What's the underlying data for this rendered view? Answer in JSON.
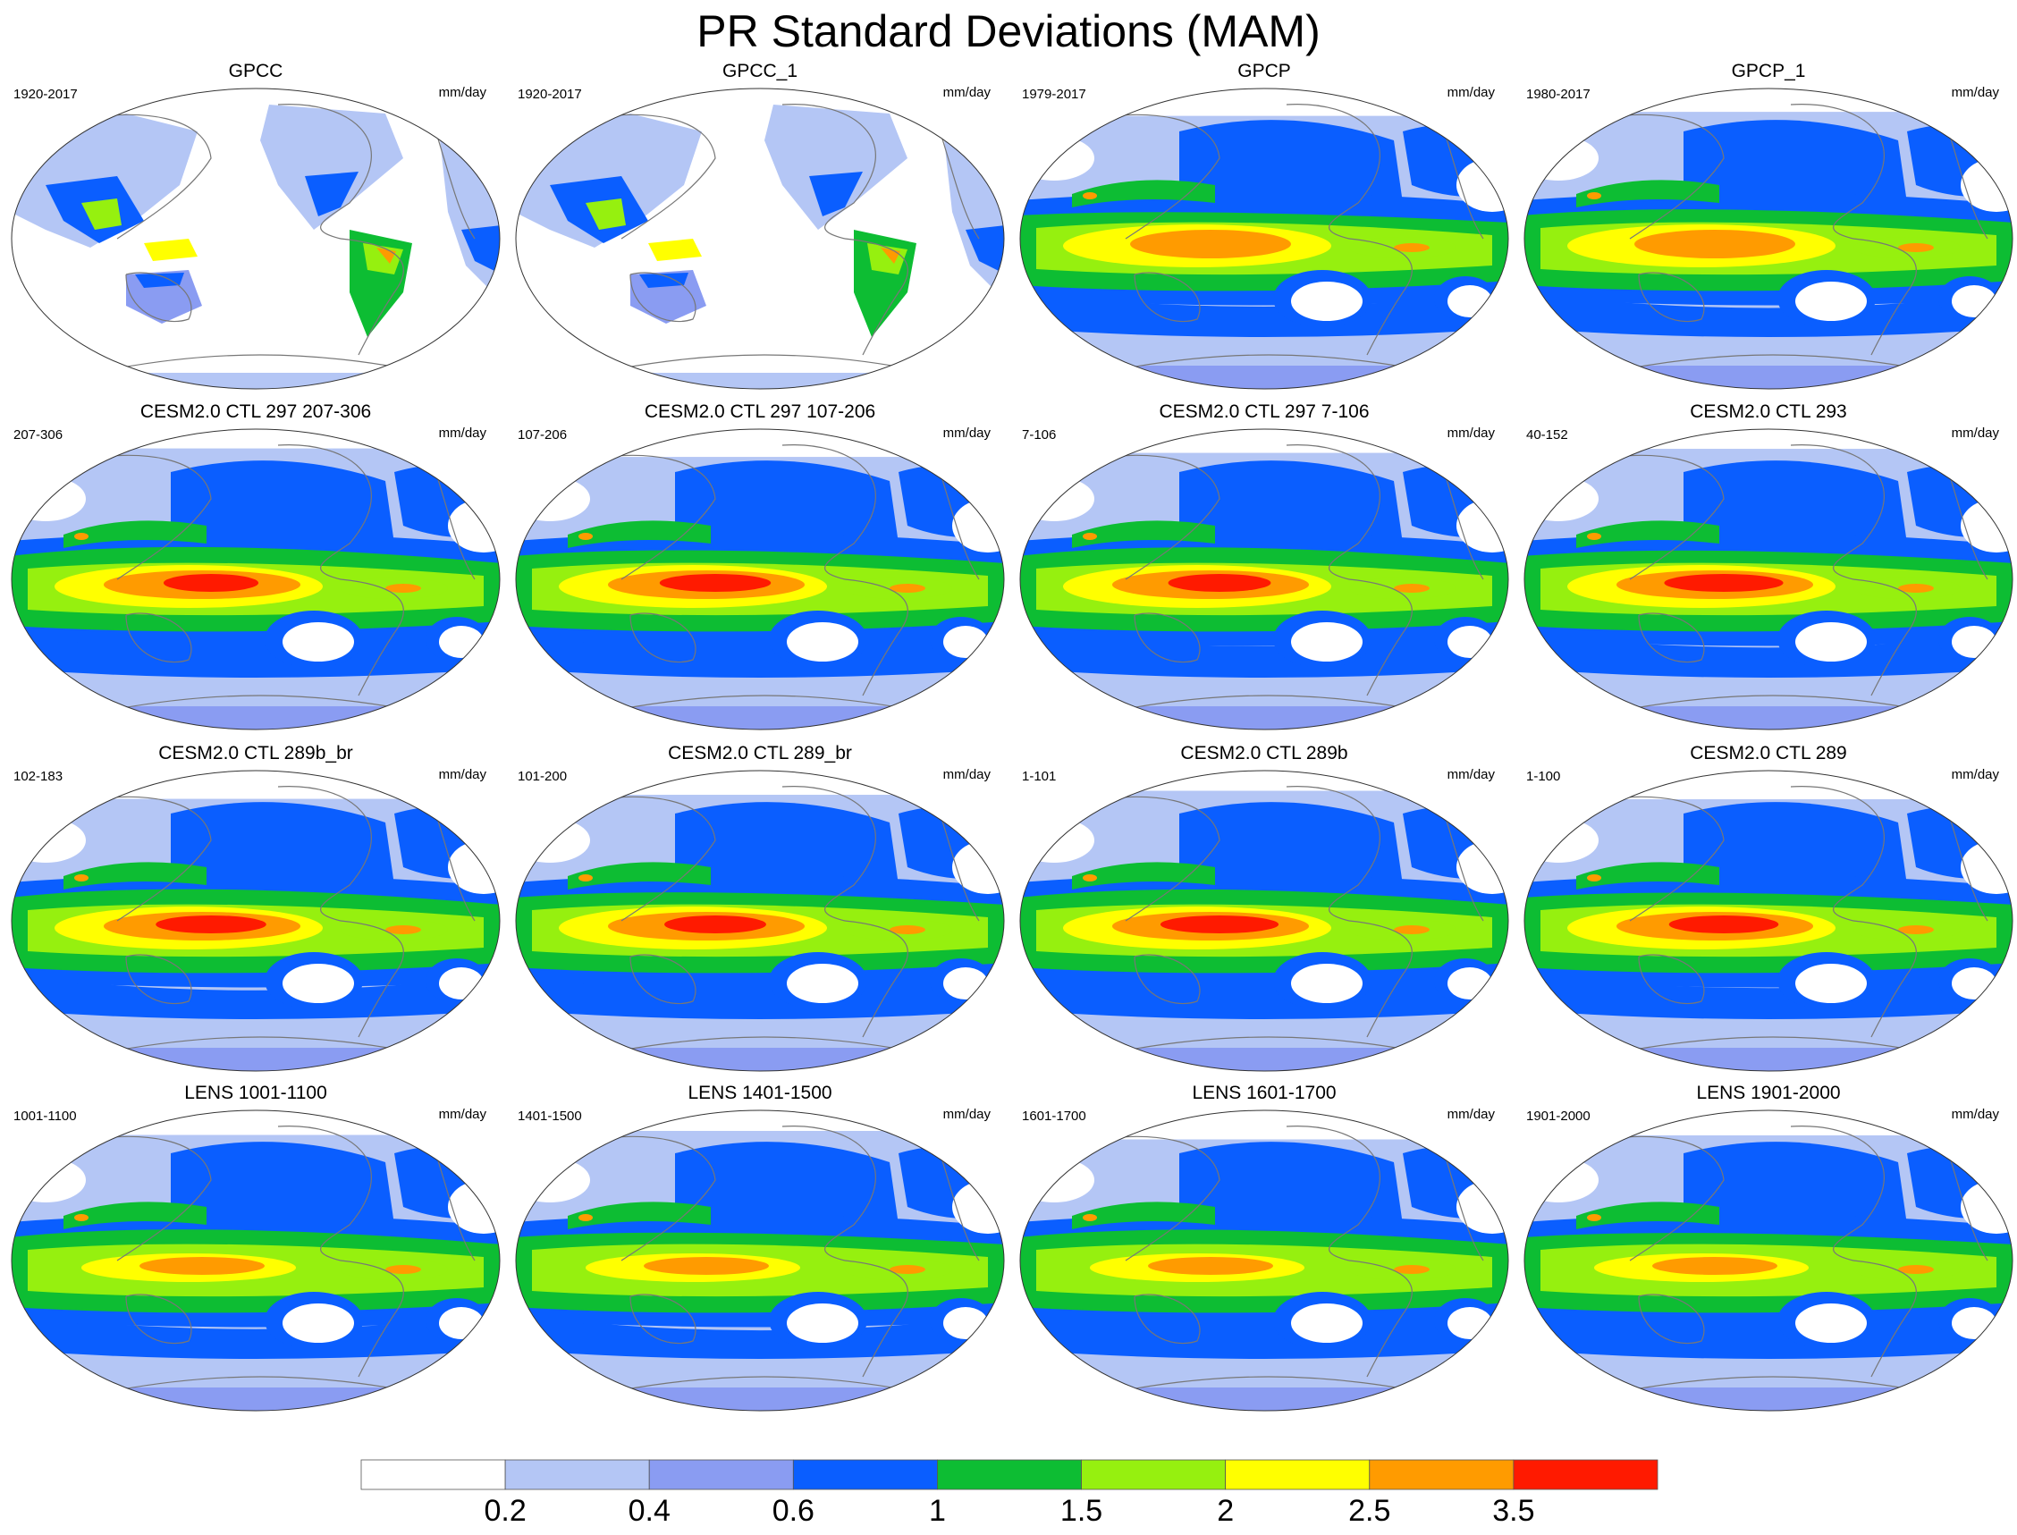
{
  "title": "PR Standard Deviations (MAM)",
  "units": "mm/day",
  "panels": [
    {
      "title": "GPCC",
      "years": "1920-2017",
      "kind": "land"
    },
    {
      "title": "GPCC_1",
      "years": "1920-2017",
      "kind": "land"
    },
    {
      "title": "GPCP",
      "years": "1979-2017",
      "kind": "obs"
    },
    {
      "title": "GPCP_1",
      "years": "1980-2017",
      "kind": "obs"
    },
    {
      "title": "CESM2.0 CTL 297 207-306",
      "years": "207-306",
      "kind": "model"
    },
    {
      "title": "CESM2.0 CTL 297 107-206",
      "years": "107-206",
      "kind": "model"
    },
    {
      "title": "CESM2.0 CTL 297 7-106",
      "years": "7-106",
      "kind": "model"
    },
    {
      "title": "CESM2.0 CTL 293",
      "years": "40-152",
      "kind": "model"
    },
    {
      "title": "CESM2.0 CTL 289b_br",
      "years": "102-183",
      "kind": "model"
    },
    {
      "title": "CESM2.0 CTL 289_br",
      "years": "101-200",
      "kind": "model"
    },
    {
      "title": "CESM2.0 CTL 289b",
      "years": "1-101",
      "kind": "model"
    },
    {
      "title": "CESM2.0 CTL 289",
      "years": "1-100",
      "kind": "model"
    },
    {
      "title": "LENS 1001-1100",
      "years": "1001-1100",
      "kind": "lens"
    },
    {
      "title": "LENS 1401-1500",
      "years": "1401-1500",
      "kind": "lens"
    },
    {
      "title": "LENS 1601-1700",
      "years": "1601-1700",
      "kind": "lens"
    },
    {
      "title": "LENS 1901-2000",
      "years": "1901-2000",
      "kind": "lens"
    }
  ],
  "colorbar": {
    "levels": [
      "0.2",
      "0.4",
      "0.6",
      "1",
      "1.5",
      "2",
      "2.5",
      "3.5"
    ],
    "colors": [
      "#ffffff",
      "#b4c6f5",
      "#8a9cf2",
      "#0a5eff",
      "#0dbd33",
      "#96f00f",
      "#ffff00",
      "#ff9b00",
      "#ff1a00"
    ]
  },
  "colors": {
    "ocean_low": "#ffffff",
    "coastline": "#777777",
    "map_border": "#333333"
  }
}
